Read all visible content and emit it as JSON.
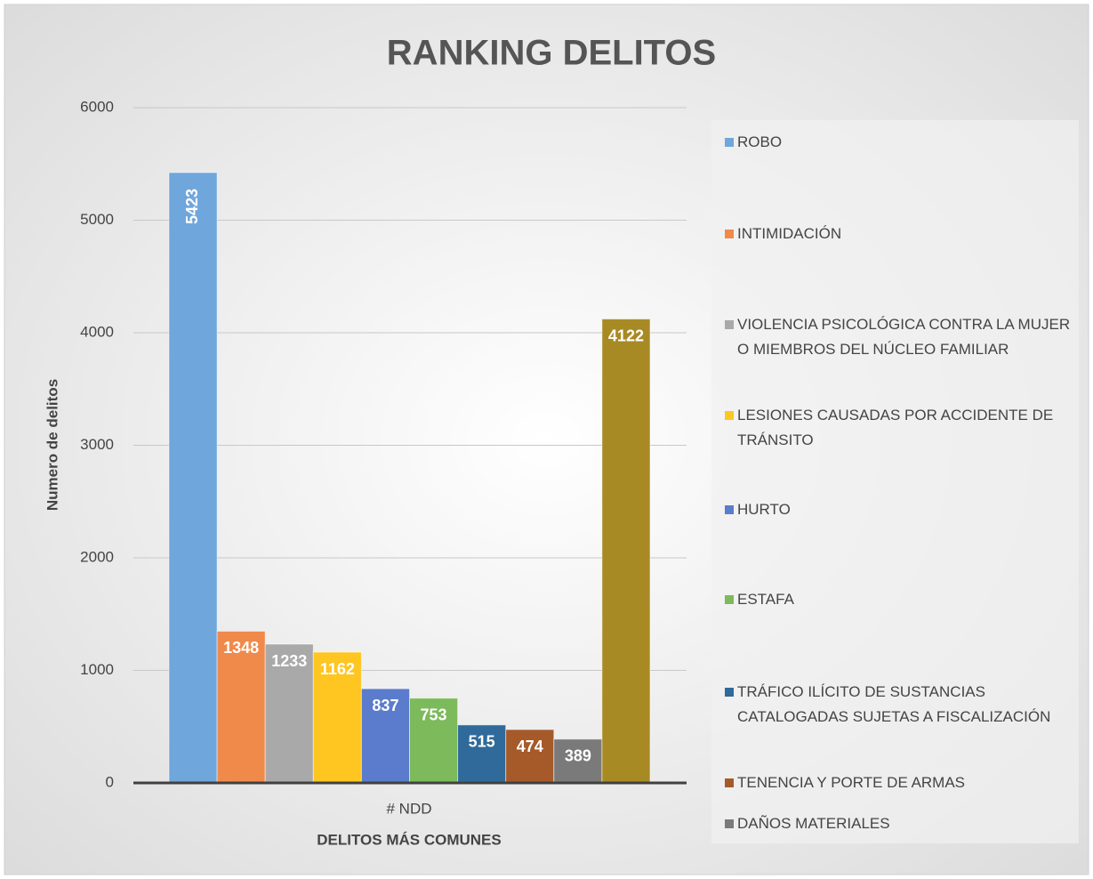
{
  "chart_data": {
    "type": "bar",
    "title": "RANKING DELITOS",
    "x_label": "DELITOS  MÁS COMUNES",
    "y_label": "Numero de delitos",
    "categories": [
      "# NDD"
    ],
    "series": [
      {
        "name": "ROBO",
        "color": "#6fa6dc",
        "values": [
          5423
        ]
      },
      {
        "name": "INTIMIDACIÓN",
        "color": "#f08a4b",
        "values": [
          1348
        ]
      },
      {
        "name": "VIOLENCIA PSICOLÓGICA CONTRA LA MUJER O MIEMBROS DEL NÚCLEO FAMILIAR",
        "color": "#a9a9a9",
        "values": [
          1233
        ]
      },
      {
        "name": "LESIONES CAUSADAS POR ACCIDENTE DE TRÁNSITO",
        "color": "#ffc521",
        "values": [
          1162
        ]
      },
      {
        "name": "HURTO",
        "color": "#5b7ccc",
        "values": [
          837
        ]
      },
      {
        "name": "ESTAFA",
        "color": "#7cba5b",
        "values": [
          753
        ]
      },
      {
        "name": "TRÁFICO ILÍCITO DE SUSTANCIAS CATALOGADAS SUJETAS A FISCALIZACIÓN",
        "color": "#2f6a9a",
        "values": [
          515
        ]
      },
      {
        "name": "TENENCIA Y PORTE DE ARMAS",
        "color": "#a65a2a",
        "values": [
          474
        ]
      },
      {
        "name": "DAÑOS MATERIALES",
        "color": "#7a7a7a",
        "values": [
          389
        ]
      },
      {
        "color": "#a88a24",
        "values": [
          4122
        ]
      }
    ],
    "ylim": [
      0,
      6000
    ],
    "yticks": [
      0,
      1000,
      2000,
      3000,
      4000,
      5000,
      6000
    ],
    "grid": true,
    "legend": "right"
  }
}
